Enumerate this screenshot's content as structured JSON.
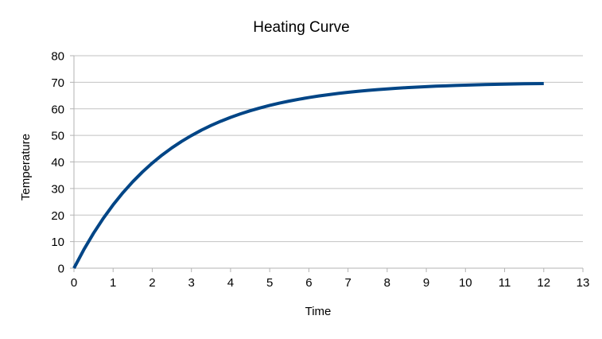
{
  "chart_data": {
    "type": "line",
    "title": "Heating Curve",
    "xlabel": "Time",
    "ylabel": "Temperature",
    "xlim": [
      0,
      13
    ],
    "ylim": [
      0,
      80
    ],
    "x_ticks": [
      0,
      1,
      2,
      3,
      4,
      5,
      6,
      7,
      8,
      9,
      10,
      11,
      12,
      13
    ],
    "y_ticks": [
      0,
      10,
      20,
      30,
      40,
      50,
      60,
      70,
      80
    ],
    "grid": "horizontal-only",
    "legend": "none",
    "series": [
      {
        "name": "Temperature",
        "color": "#004586",
        "stroke_width": 4,
        "x": [
          0,
          0.25,
          0.5,
          0.75,
          1,
          1.25,
          1.5,
          1.75,
          2,
          2.25,
          2.5,
          2.75,
          3,
          3.25,
          3.5,
          3.75,
          4,
          4.25,
          4.5,
          4.75,
          5,
          5.25,
          5.5,
          5.75,
          6,
          6.25,
          6.5,
          6.75,
          7,
          7.25,
          7.5,
          7.75,
          8,
          8.25,
          8.5,
          8.75,
          9,
          9.25,
          9.5,
          9.75,
          10,
          10.25,
          10.5,
          10.75,
          11,
          11.25,
          11.5,
          11.75,
          12
        ],
        "y": [
          0,
          6.92,
          13.16,
          18.79,
          23.85,
          28.42,
          32.53,
          36.24,
          39.58,
          42.59,
          45.3,
          47.74,
          49.94,
          51.93,
          53.72,
          55.33,
          56.78,
          58.09,
          59.27,
          60.33,
          61.28,
          62.15,
          62.92,
          63.62,
          64.25,
          64.82,
          65.33,
          65.8,
          66.21,
          66.59,
          66.92,
          67.23,
          67.5,
          67.75,
          67.97,
          68.17,
          68.35,
          68.52,
          68.66,
          68.8,
          68.91,
          69.02,
          69.12,
          69.21,
          69.28,
          69.36,
          69.42,
          69.48,
          69.53
        ]
      }
    ]
  },
  "colors": {
    "background": "#FFFFFF",
    "series_line": "#004586",
    "gridline": "#C2C2C2",
    "axis": "#B3B3B3",
    "text": "#000000"
  }
}
